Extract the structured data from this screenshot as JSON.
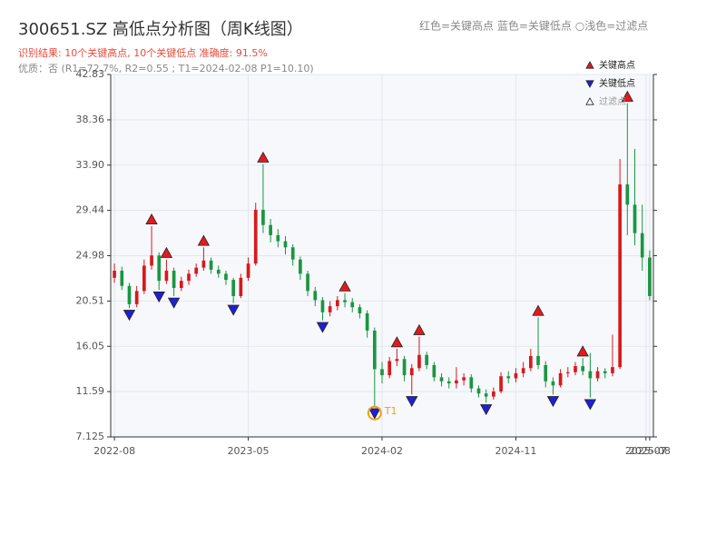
{
  "chart_data": {
    "type": "candlestick",
    "title": "300651.SZ 高低点分析图（周K线图）",
    "color_note": "红色=关键高点    蓝色=关键低点    ○浅色=过滤点",
    "subtitle": "识别结果: 10个关键高点, 10个关键低点   准确度: 91.5%",
    "subtitle2": "优质：否  (R1=72.7%, R2=0.55 ; T1=2024-02-08 P1=10.10)",
    "up_color": "#d7191c",
    "down_color": "#1a9641",
    "open": [
      22.8,
      23.5,
      22.0,
      20.2,
      21.5,
      24.0,
      25.0,
      22.5,
      23.5,
      21.8,
      22.5,
      23.2,
      23.8,
      24.5,
      23.6,
      23.2,
      22.6,
      21.0,
      22.8,
      24.2,
      29.5,
      28.0,
      27.0,
      26.4,
      25.8,
      24.6,
      23.2,
      21.5,
      20.6,
      19.4,
      20.0,
      20.6,
      20.4,
      19.9,
      19.3,
      17.6,
      13.8,
      13.2,
      14.6,
      14.8,
      13.2,
      13.9,
      15.2,
      14.2,
      13.0,
      12.6,
      12.4,
      12.7,
      13.0,
      11.9,
      11.4,
      11.1,
      11.6,
      13.1,
      12.9,
      13.4,
      13.9,
      15.1,
      14.2,
      12.6,
      12.2,
      13.4,
      13.5,
      14.1,
      13.6,
      12.9,
      13.6,
      13.4,
      14.0,
      32.0,
      30.0,
      27.2,
      24.8
    ],
    "high": [
      24.2,
      23.9,
      22.3,
      22.0,
      24.6,
      27.9,
      25.3,
      24.6,
      23.8,
      22.9,
      23.6,
      24.2,
      25.8,
      24.8,
      24.0,
      23.5,
      22.8,
      23.2,
      24.8,
      30.2,
      34.0,
      28.6,
      27.6,
      26.9,
      26.1,
      24.9,
      23.5,
      21.9,
      20.9,
      20.5,
      21.0,
      21.3,
      20.8,
      20.2,
      19.6,
      17.9,
      14.5,
      15.0,
      15.8,
      15.1,
      14.3,
      17.0,
      15.5,
      14.5,
      13.4,
      13.0,
      14.0,
      13.4,
      13.3,
      12.2,
      11.8,
      12.0,
      13.5,
      13.6,
      13.9,
      14.5,
      15.8,
      18.9,
      14.6,
      13.0,
      13.8,
      14.0,
      14.5,
      14.9,
      15.4,
      14.0,
      13.9,
      17.2,
      34.5,
      40.0,
      35.5,
      30.0,
      25.5
    ],
    "low": [
      22.3,
      21.6,
      19.8,
      19.9,
      21.2,
      23.6,
      21.6,
      22.2,
      21.0,
      21.5,
      22.1,
      22.9,
      23.5,
      23.2,
      22.8,
      22.1,
      20.3,
      20.8,
      22.5,
      24.0,
      27.2,
      26.3,
      25.8,
      25.1,
      24.0,
      22.6,
      21.0,
      20.0,
      18.6,
      19.0,
      19.6,
      19.9,
      19.4,
      18.8,
      16.9,
      10.1,
      12.4,
      12.9,
      14.1,
      12.6,
      11.3,
      13.6,
      13.8,
      12.6,
      12.1,
      11.9,
      11.9,
      12.2,
      11.5,
      11.0,
      10.5,
      10.8,
      11.4,
      12.4,
      12.5,
      13.0,
      13.6,
      13.8,
      12.0,
      11.3,
      12.0,
      13.0,
      13.2,
      13.2,
      11.0,
      12.6,
      12.9,
      13.1,
      13.8,
      27.0,
      26.0,
      23.5,
      20.6
    ],
    "close": [
      23.5,
      22.0,
      20.2,
      21.5,
      24.0,
      25.0,
      22.5,
      23.5,
      21.8,
      22.5,
      23.2,
      23.8,
      24.5,
      23.6,
      23.2,
      22.6,
      21.0,
      22.8,
      24.2,
      29.5,
      28.0,
      27.0,
      26.4,
      25.8,
      24.6,
      23.2,
      21.5,
      20.6,
      19.4,
      20.0,
      20.6,
      20.4,
      19.9,
      19.3,
      17.6,
      13.8,
      13.2,
      14.6,
      14.8,
      13.2,
      13.9,
      15.2,
      14.2,
      13.0,
      12.6,
      12.4,
      12.7,
      13.0,
      11.9,
      11.4,
      11.1,
      11.6,
      13.1,
      12.9,
      13.4,
      13.9,
      15.1,
      14.2,
      12.6,
      12.2,
      13.4,
      13.5,
      14.1,
      13.6,
      12.9,
      13.6,
      13.4,
      14.0,
      32.0,
      30.0,
      27.2,
      24.8,
      21.0
    ],
    "markers": [
      {
        "name": "关键高点",
        "color": "#e31a1c",
        "shape": "up",
        "x": [
          5,
          7,
          12,
          20,
          31,
          38,
          41,
          57,
          63,
          69
        ],
        "values": [
          27.9,
          24.6,
          25.8,
          34.0,
          21.3,
          15.8,
          17.0,
          18.9,
          14.9,
          40.0
        ]
      },
      {
        "name": "关键低点",
        "color": "#1f1fd6",
        "shape": "down",
        "x": [
          2,
          6,
          8,
          16,
          28,
          35,
          40,
          50,
          59,
          64
        ],
        "values": [
          19.8,
          21.6,
          21.0,
          20.3,
          18.6,
          10.1,
          11.3,
          10.5,
          11.3,
          11.0
        ]
      },
      {
        "name": "过滤点",
        "color": "#ffffff",
        "shape": "up",
        "x": [],
        "values": []
      }
    ],
    "annotation": {
      "text": "T1",
      "x": 35,
      "value": 10.1,
      "color": "#f39c12"
    },
    "xlim": [
      -0.5,
      72.5
    ],
    "xticks": [
      {
        "value": 0,
        "label": "2022-08"
      },
      {
        "value": 18,
        "label": "2023-05"
      },
      {
        "value": 36,
        "label": "2024-02"
      },
      {
        "value": 54,
        "label": "2024-11"
      },
      {
        "value": 71.5,
        "label": "2025-07"
      },
      {
        "value": 72,
        "label": "2025-08"
      }
    ],
    "ylim": [
      7.125,
      42.83
    ],
    "yticks": [
      7.125,
      11.59,
      16.05,
      20.51,
      24.98,
      29.44,
      {
        "value": 33.9,
        "label": "33.90"
      },
      38.36,
      42.83
    ],
    "grid": true
  }
}
